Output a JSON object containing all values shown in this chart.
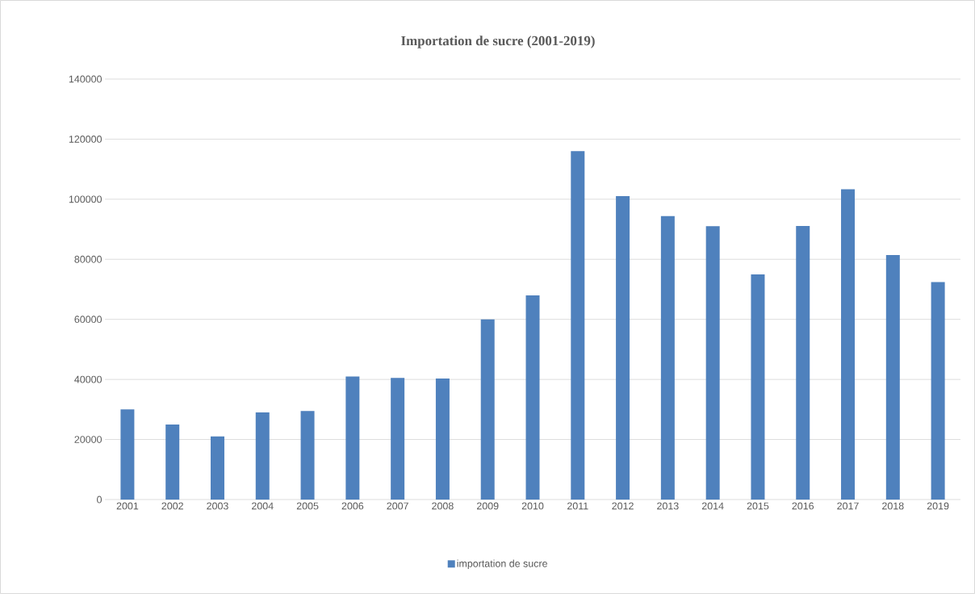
{
  "chart_data": {
    "type": "bar",
    "title": "Importation de sucre (2001-2019)",
    "categories": [
      "2001",
      "2002",
      "2003",
      "2004",
      "2005",
      "2006",
      "2007",
      "2008",
      "2009",
      "2010",
      "2011",
      "2012",
      "2013",
      "2014",
      "2015",
      "2016",
      "2017",
      "2018",
      "2019"
    ],
    "series": [
      {
        "name": "importation de sucre",
        "color": "#4f81bd",
        "values": [
          30000,
          25000,
          21000,
          29000,
          29500,
          41000,
          40500,
          40300,
          60000,
          68000,
          116000,
          101000,
          94400,
          91000,
          75000,
          91100,
          103300,
          81400,
          72400
        ]
      }
    ],
    "ylim": [
      0,
      140000
    ],
    "yticks": [
      0,
      20000,
      40000,
      60000,
      80000,
      100000,
      120000,
      140000
    ],
    "grid": "y",
    "legend": "bottom"
  }
}
